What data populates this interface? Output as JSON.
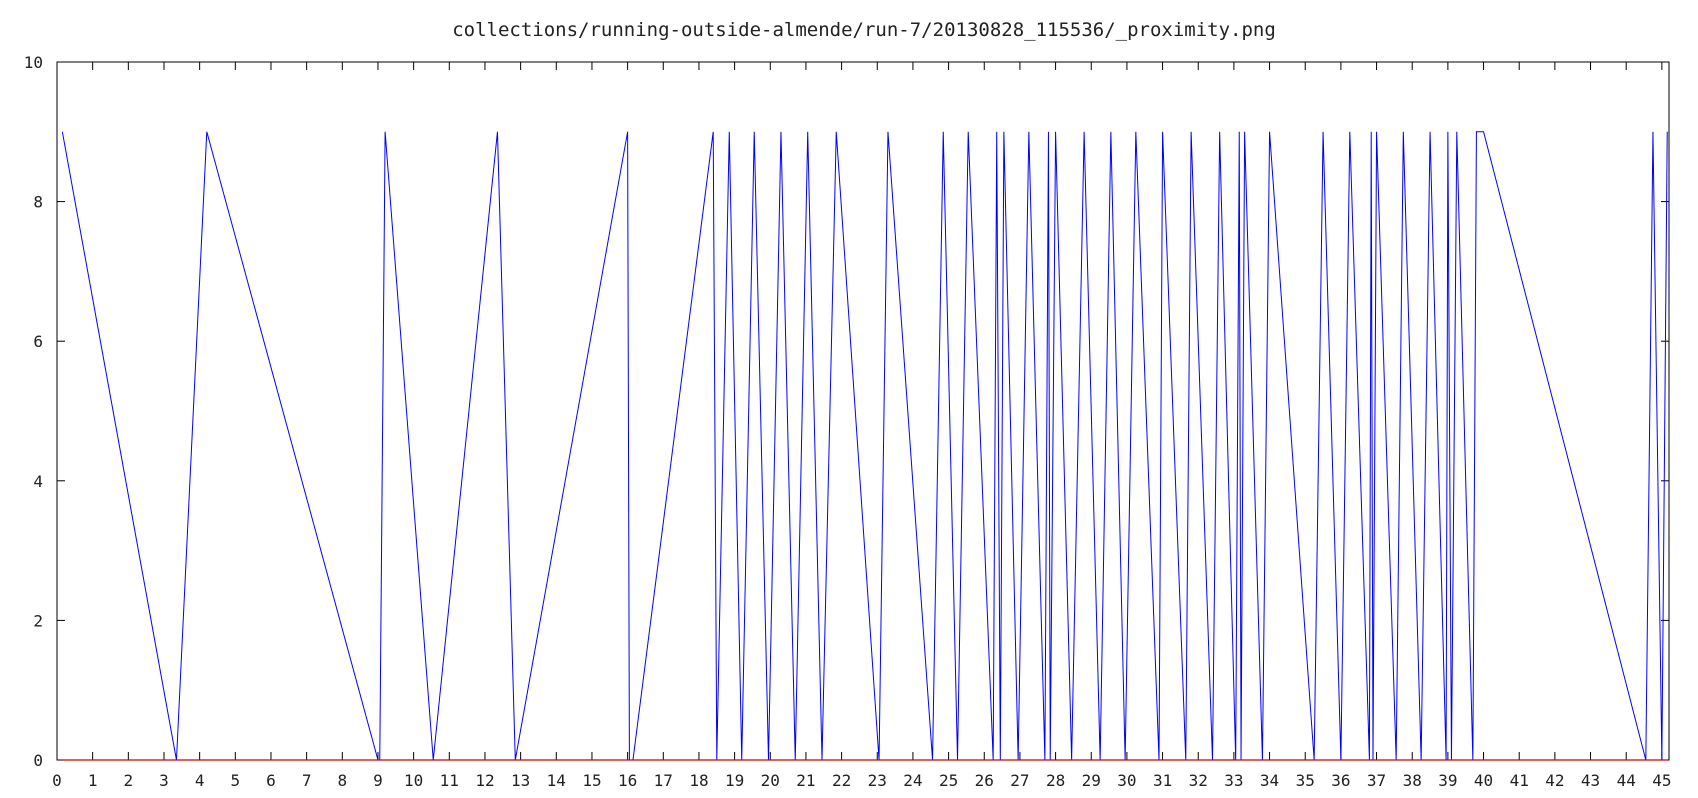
{
  "colors": {
    "series_primary": "#0000ff",
    "series_secondary": "#cc0000",
    "axis": "#000000",
    "text": "#222222",
    "background": "#ffffff"
  },
  "chart_data": {
    "type": "line",
    "title": "collections/running-outside-almende/run-7/20130828_115536/_proximity.png",
    "xlabel": "",
    "ylabel": "",
    "xlim": [
      0,
      45.2
    ],
    "ylim": [
      0,
      10
    ],
    "grid": false,
    "legend": "none",
    "x_ticks": [
      0,
      1,
      2,
      3,
      4,
      5,
      6,
      7,
      8,
      9,
      10,
      11,
      12,
      13,
      14,
      15,
      16,
      17,
      18,
      19,
      20,
      21,
      22,
      23,
      24,
      25,
      26,
      27,
      28,
      29,
      30,
      31,
      32,
      33,
      34,
      35,
      36,
      37,
      38,
      39,
      40,
      41,
      42,
      43,
      44,
      45
    ],
    "x_tick_labels": [
      "0",
      "1",
      "2",
      "3",
      "4",
      "5",
      "6",
      "7",
      "8",
      "9",
      "10",
      "11",
      "12",
      "13",
      "14",
      "15",
      "16",
      "17",
      "18",
      "19",
      "20",
      "21",
      "22",
      "23",
      "24",
      "25",
      "26",
      "27",
      "28",
      "29",
      "30",
      "31",
      "32",
      "33",
      "34",
      "35",
      "36",
      "37",
      "38",
      "39",
      "40",
      "41",
      "42",
      "43",
      "44",
      "45"
    ],
    "y_ticks": [
      0,
      2,
      4,
      6,
      8,
      10
    ],
    "y_tick_labels": [
      "0",
      "2",
      "4",
      "6",
      "8",
      "10"
    ],
    "series": [
      {
        "color": "#0000ff",
        "x": [
          0.15,
          3.35,
          4.2,
          9.0,
          9.05,
          9.2,
          10.55,
          12.35,
          12.85,
          16.0,
          16.05,
          16.15,
          18.4,
          18.5,
          18.85,
          19.2,
          19.55,
          19.95,
          20.3,
          20.7,
          21.05,
          21.45,
          21.85,
          23.05,
          23.3,
          24.55,
          24.85,
          25.25,
          25.55,
          26.25,
          26.35,
          26.45,
          26.55,
          26.95,
          27.25,
          27.7,
          27.8,
          27.85,
          28.0,
          28.45,
          28.8,
          29.25,
          29.55,
          29.95,
          30.25,
          30.9,
          31.0,
          31.65,
          31.8,
          32.4,
          32.6,
          33.05,
          33.15,
          33.2,
          33.3,
          33.8,
          34.0,
          35.25,
          35.5,
          36.0,
          36.25,
          36.8,
          36.85,
          36.9,
          37.0,
          37.55,
          37.75,
          38.25,
          38.5,
          38.95,
          39.0,
          39.1,
          39.25,
          39.7,
          39.8,
          40.0,
          44.55,
          44.75,
          45.0,
          45.15
        ],
        "y": [
          9,
          0,
          9,
          0,
          0,
          9,
          0,
          9,
          0,
          9,
          0,
          0,
          9,
          0,
          9,
          0,
          9,
          0,
          9,
          0,
          9,
          0,
          9,
          0,
          9,
          0,
          9,
          0,
          9,
          0,
          9,
          0,
          9,
          0,
          9,
          0,
          9,
          0,
          9,
          0,
          9,
          0,
          9,
          0,
          9,
          0,
          9,
          0,
          9,
          0,
          9,
          0,
          9,
          0,
          9,
          0,
          9,
          0,
          9,
          0,
          9,
          0,
          9,
          0,
          9,
          0,
          9,
          0,
          9,
          0,
          9,
          0,
          9,
          0,
          9,
          9,
          0,
          9,
          0,
          9
        ]
      },
      {
        "color": "#cc0000",
        "x": [
          0.15,
          45.15
        ],
        "y": [
          0,
          0
        ]
      }
    ]
  }
}
